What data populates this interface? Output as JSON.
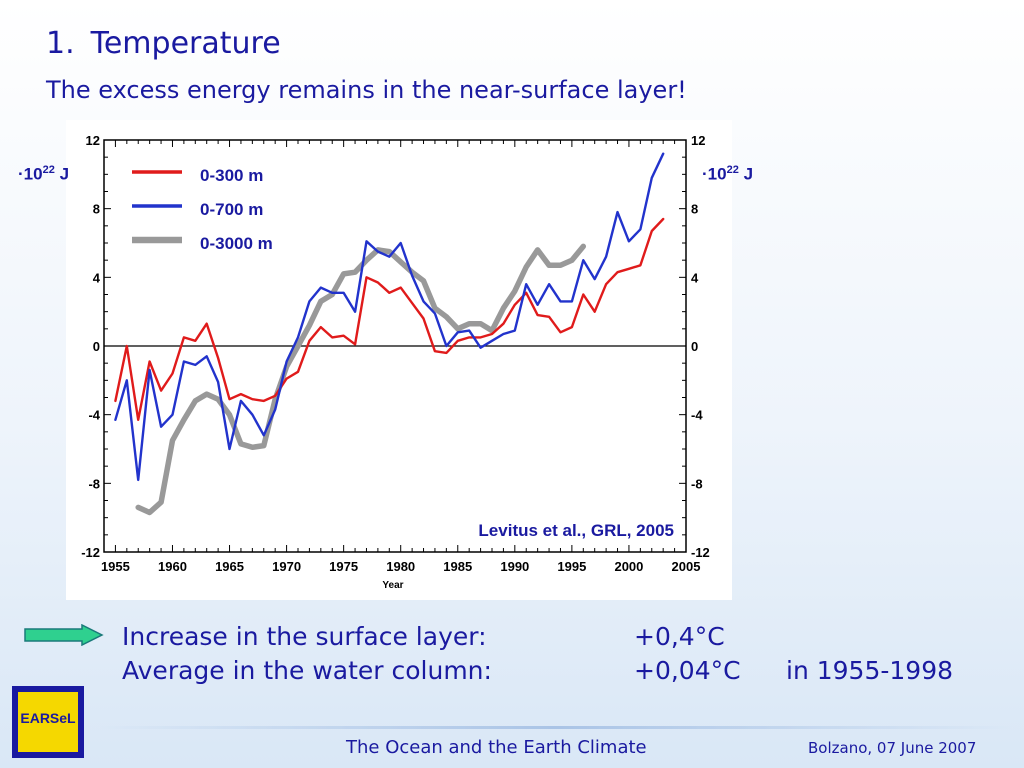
{
  "slide": {
    "number": "1.",
    "title": "Temperature",
    "subtitle": "The excess energy remains in the near-surface layer!"
  },
  "units": {
    "left_prefix": "·10",
    "exponent": "22",
    "unit": "J"
  },
  "stats": [
    {
      "label": "Increase in the surface layer:",
      "value": "+0,4°C",
      "note": ""
    },
    {
      "label": "Average in the water column:",
      "value": "+0,04°C",
      "note": "in 1955-1998"
    }
  ],
  "logo": {
    "text": "EARSeL"
  },
  "footer": {
    "center": "The Ocean and the Earth Climate",
    "right": "Bolzano, 07 June 2007"
  },
  "colors": {
    "text": "#1a1aa0",
    "red": "#e01b1b",
    "blue": "#2233cc",
    "gray": "#999999",
    "arrow_fill": "#2fd08f"
  },
  "chart_data": {
    "type": "line",
    "xlabel": "Year",
    "ylabel": "",
    "xlim": [
      1954,
      2005
    ],
    "ylim": [
      -12,
      12
    ],
    "x_ticks": [
      1955,
      1960,
      1965,
      1970,
      1975,
      1980,
      1985,
      1990,
      1995,
      2000,
      2005
    ],
    "y_ticks": [
      -12,
      -8,
      -4,
      0,
      4,
      8,
      12
    ],
    "annotation": "Levitus et al., GRL, 2005",
    "legend_position": "top-left",
    "series": [
      {
        "name": "0-300 m",
        "color": "#e01b1b",
        "x": [
          1955,
          1956,
          1957,
          1958,
          1959,
          1960,
          1961,
          1962,
          1963,
          1964,
          1965,
          1966,
          1967,
          1968,
          1969,
          1970,
          1971,
          1972,
          1973,
          1974,
          1975,
          1976,
          1977,
          1978,
          1979,
          1980,
          1981,
          1982,
          1983,
          1984,
          1985,
          1986,
          1987,
          1988,
          1989,
          1990,
          1991,
          1992,
          1993,
          1994,
          1995,
          1996,
          1997,
          1998,
          1999,
          2000,
          2001,
          2002,
          2003
        ],
        "y": [
          -3.2,
          0.0,
          -4.3,
          -0.9,
          -2.6,
          -1.6,
          0.5,
          0.3,
          1.3,
          -0.7,
          -3.1,
          -2.8,
          -3.1,
          -3.2,
          -2.9,
          -1.9,
          -1.5,
          0.3,
          1.1,
          0.5,
          0.6,
          0.1,
          4.0,
          3.7,
          3.1,
          3.4,
          2.5,
          1.6,
          -0.3,
          -0.4,
          0.3,
          0.5,
          0.5,
          0.7,
          1.3,
          2.4,
          3.1,
          1.8,
          1.7,
          0.8,
          1.1,
          3.0,
          2.0,
          3.6,
          4.3,
          4.5,
          4.7,
          6.7,
          7.4
        ]
      },
      {
        "name": "0-700 m",
        "color": "#2233cc",
        "x": [
          1955,
          1956,
          1957,
          1958,
          1959,
          1960,
          1961,
          1962,
          1963,
          1964,
          1965,
          1966,
          1967,
          1968,
          1969,
          1970,
          1971,
          1972,
          1973,
          1974,
          1975,
          1976,
          1977,
          1978,
          1979,
          1980,
          1981,
          1982,
          1983,
          1984,
          1985,
          1986,
          1987,
          1988,
          1989,
          1990,
          1991,
          1992,
          1993,
          1994,
          1995,
          1996,
          1997,
          1998,
          1999,
          2000,
          2001,
          2002,
          2003
        ],
        "y": [
          -4.3,
          -2.0,
          -7.8,
          -1.4,
          -4.7,
          -4.0,
          -0.9,
          -1.1,
          -0.6,
          -2.1,
          -6.0,
          -3.2,
          -4.0,
          -5.2,
          -3.7,
          -0.9,
          0.5,
          2.6,
          3.4,
          3.1,
          3.1,
          2.0,
          6.1,
          5.5,
          5.2,
          6.0,
          4.1,
          2.6,
          1.9,
          0.0,
          0.8,
          0.9,
          -0.1,
          0.3,
          0.7,
          0.9,
          3.6,
          2.4,
          3.6,
          2.6,
          2.6,
          5.0,
          3.9,
          5.2,
          7.8,
          6.1,
          6.8,
          9.8,
          11.2
        ]
      },
      {
        "name": "0-3000 m",
        "color": "#999999",
        "x": [
          1957,
          1958,
          1959,
          1960,
          1961,
          1962,
          1963,
          1964,
          1965,
          1966,
          1967,
          1968,
          1969,
          1970,
          1971,
          1972,
          1973,
          1974,
          1975,
          1976,
          1977,
          1978,
          1979,
          1980,
          1981,
          1982,
          1983,
          1984,
          1985,
          1986,
          1987,
          1988,
          1989,
          1990,
          1991,
          1992,
          1993,
          1994,
          1995,
          1996
        ],
        "y": [
          -9.4,
          -9.7,
          -9.1,
          -5.5,
          -4.3,
          -3.2,
          -2.8,
          -3.1,
          -4.0,
          -5.7,
          -5.9,
          -5.8,
          -3.1,
          -1.2,
          0.0,
          1.2,
          2.6,
          3.0,
          4.2,
          4.3,
          5.0,
          5.6,
          5.5,
          4.9,
          4.3,
          3.8,
          2.2,
          1.7,
          1.0,
          1.3,
          1.3,
          0.9,
          2.2,
          3.2,
          4.6,
          5.6,
          4.7,
          4.7,
          5.0,
          5.8
        ]
      }
    ]
  }
}
